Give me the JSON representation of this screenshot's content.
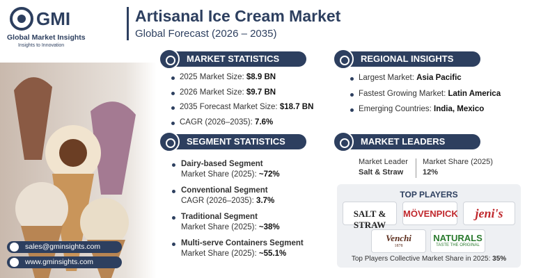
{
  "logo": {
    "name": "GMI",
    "company": "Global Market Insights",
    "tagline": "Insights to Innovation"
  },
  "header": {
    "title": "Artisanal Ice Cream Market",
    "subtitle": "Global Forecast (2026 – 2035)"
  },
  "market_statistics": {
    "heading": "MARKET STATISTICS",
    "items": [
      {
        "label": "2025 Market Size:",
        "value": "$8.9 BN"
      },
      {
        "label": "2026 Market Size:",
        "value": "$9.7 BN"
      },
      {
        "label": "2035 Forecast Market Size:",
        "value": "$18.7 BN"
      },
      {
        "label": "CAGR (2026–2035):",
        "value": "7.6%"
      }
    ]
  },
  "regional_insights": {
    "heading": "REGIONAL INSIGHTS",
    "items": [
      {
        "label": "Largest Market:",
        "value": "Asia Pacific"
      },
      {
        "label": "Fastest Growing Market:",
        "value": "Latin America"
      },
      {
        "label": "Emerging Countries:",
        "value": "India, Mexico"
      }
    ]
  },
  "segment_statistics": {
    "heading": "SEGMENT STATISTICS",
    "items": [
      {
        "name": "Dairy-based Segment",
        "label": "Market Share (2025):",
        "value": "~72%"
      },
      {
        "name": "Conventional Segment",
        "label": "CAGR (2026–2035):",
        "value": "3.7%"
      },
      {
        "name": "Traditional Segment",
        "label": "Market Share (2025):",
        "value": "~38%"
      },
      {
        "name": "Multi-serve Containers Segment",
        "label": "Market Share (2025):",
        "value": "~55.1%"
      }
    ]
  },
  "market_leaders": {
    "heading": "MARKET LEADERS",
    "leader_label": "Market Leader",
    "leader": "Salt & Straw",
    "share_label": "Market Share (2025)",
    "share": "12%"
  },
  "top_players": {
    "heading": "TOP PLAYERS",
    "players": [
      {
        "name": "SALT & STRAW"
      },
      {
        "name": "MÖVENPICK"
      },
      {
        "name": "jeni's"
      },
      {
        "name": "Venchi",
        "sub": "1878"
      },
      {
        "name": "NATURALS",
        "sub": "TASTE THE ORIGINAL"
      }
    ],
    "note": "Top Players Collective Market Share in 2025:",
    "note_value": "35%"
  },
  "contact": {
    "email": "sales@gminsights.com",
    "website": "www.gminsights.com"
  }
}
